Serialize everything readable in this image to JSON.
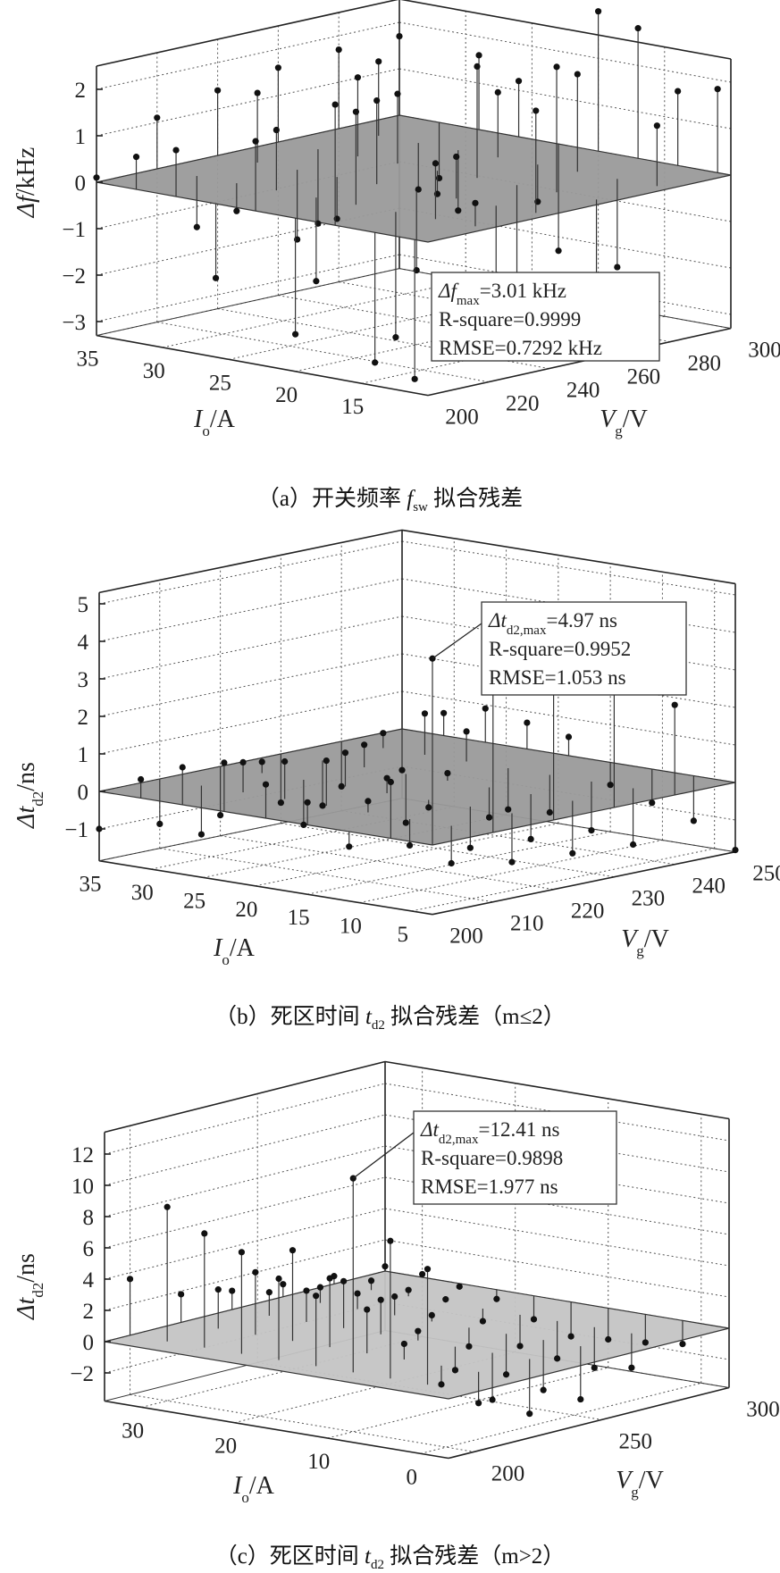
{
  "chart_data": [
    {
      "type": "scatter",
      "subtype": "3d-stem-residual",
      "caption": {
        "prefix": "（a）开关频率 ",
        "sym": "f",
        "sub": "sw",
        "suffix": " 拟合残差"
      },
      "xlabel": {
        "main": "I",
        "sub": "o",
        "suffix": "/A"
      },
      "ylabel": {
        "main": "V",
        "sub": "g",
        "suffix": "/V"
      },
      "zlabel": {
        "main": "Δf",
        "sub": "",
        "suffix": "/kHz"
      },
      "xlim": [
        10,
        35
      ],
      "ylim": [
        200,
        300
      ],
      "zlim": [
        -3.3,
        2.5
      ],
      "xticks": [
        15,
        20,
        25,
        30,
        35
      ],
      "yticks": [
        200,
        220,
        240,
        260,
        280,
        300
      ],
      "zticks": [
        -3,
        -2,
        -1,
        0,
        1,
        2
      ],
      "grid": true,
      "plane_color": "#9a9a9a",
      "io": [
        35,
        32,
        29,
        26,
        23,
        20,
        17,
        14,
        11
      ],
      "vg": [
        200,
        220,
        240,
        260,
        280,
        300
      ],
      "residual": [
        [
          0.1,
          1.1,
          1.4,
          1.6,
          1.7,
          1.7
        ],
        [
          0.7,
          -1.1,
          1.5,
          -1.6,
          1.6,
          -1.2
        ],
        [
          1.0,
          -0.6,
          -1.5,
          1.7,
          -1.0,
          1.6
        ],
        [
          -1.6,
          1.3,
          -0.9,
          1.5,
          -1.3,
          1.2
        ],
        [
          1.5,
          -1.8,
          1.8,
          -0.5,
          1.4,
          -2.3
        ],
        [
          -2.5,
          2.0,
          -1.7,
          2.4,
          -0.8,
          3.01
        ],
        [
          2.6,
          -2.7,
          0.9,
          -2.2,
          2.1,
          2.8
        ],
        [
          -2.8,
          1.2,
          -2.4,
          2.7,
          -1.9,
          1.6
        ],
        [
          -3.0,
          0.5,
          2.2,
          -1.7,
          1.3,
          1.8
        ]
      ],
      "annotation": {
        "sym": "Δf",
        "sub": "max",
        "value": "=3.01 kHz",
        "line2": "R-square=0.9999",
        "line3": "RMSE=0.7292 kHz"
      }
    },
    {
      "type": "scatter",
      "subtype": "3d-stem-residual",
      "caption": {
        "prefix": "（b）死区时间 ",
        "sym": "t",
        "sub": "d2",
        "suffix": " 拟合残差（m≤2）"
      },
      "xlabel": {
        "main": "I",
        "sub": "o",
        "suffix": "/A"
      },
      "ylabel": {
        "main": "V",
        "sub": "g",
        "suffix": "/V"
      },
      "zlabel": {
        "main": "Δt",
        "sub": "d2",
        "suffix": "/ns"
      },
      "xlim": [
        3,
        35
      ],
      "ylim": [
        200,
        250
      ],
      "zlim": [
        -1.85,
        5.3
      ],
      "xticks": [
        5,
        10,
        15,
        20,
        25,
        30,
        35
      ],
      "yticks": [
        200,
        210,
        220,
        230,
        240,
        250
      ],
      "zticks": [
        -1,
        0,
        1,
        2,
        3,
        4,
        5
      ],
      "grid": true,
      "plane_color": "#9a9a9a",
      "io": [
        35,
        31,
        27,
        23,
        19,
        15,
        11,
        7,
        3
      ],
      "vg": [
        200,
        210,
        220,
        230,
        240,
        250
      ],
      "residual": [
        [
          -1.0,
          -1.2,
          -1.3,
          -1.3,
          -1.2,
          -1.1
        ],
        [
          0.5,
          -1.3,
          0.3,
          -1.2,
          0.4,
          0.6
        ],
        [
          1.0,
          0.8,
          -1.2,
          0.6,
          1.1,
          0.9
        ],
        [
          1.3,
          1.0,
          0.9,
          -1.3,
          0.8,
          0.7
        ],
        [
          0.9,
          1.2,
          0.4,
          0.2,
          -1.1,
          0.5
        ],
        [
          0.6,
          0.3,
          -0.2,
          -0.8,
          -1.0,
          -0.6
        ],
        [
          -0.4,
          -0.7,
          -1.1,
          -1.2,
          -1.3,
          -0.9
        ],
        [
          1.5,
          -1.0,
          -1.3,
          -1.4,
          -1.5,
          -1.2
        ],
        [
          4.97,
          4.8,
          4.3,
          3.9,
          2.4,
          -1.8
        ]
      ],
      "max_point": [
        3,
        200,
        4.97
      ],
      "annotation": {
        "sym": "Δt",
        "sub": "d2,max",
        "value": "=4.97 ns",
        "line2": "R-square=0.9952",
        "line3": "RMSE=1.053 ns"
      }
    },
    {
      "type": "scatter",
      "subtype": "3d-stem-residual",
      "caption": {
        "prefix": "（c）死区时间 ",
        "sym": "t",
        "sub": "d2",
        "suffix": " 拟合残差（m>2）"
      },
      "xlabel": {
        "main": "I",
        "sub": "o",
        "suffix": "/A"
      },
      "ylabel": {
        "main": "V",
        "sub": "g",
        "suffix": "/V"
      },
      "zlabel": {
        "main": "Δt",
        "sub": "d2",
        "suffix": "/ns"
      },
      "xlim": [
        -3,
        34
      ],
      "ylim": [
        190,
        300
      ],
      "zlim": [
        -3.8,
        13.4
      ],
      "xticks": [
        0,
        10,
        20,
        30
      ],
      "yticks": [
        200,
        250,
        300
      ],
      "zticks": [
        -2,
        0,
        2,
        4,
        6,
        8,
        10,
        12
      ],
      "grid": true,
      "plane_color": "#c4c4c4",
      "io": [
        34,
        30,
        26,
        22,
        18,
        14,
        10,
        6,
        2
      ],
      "vg": [
        200,
        220,
        240,
        260,
        280,
        300
      ],
      "residual": [
        [
          3.6,
          1.8,
          1.2,
          0.8,
          0.5,
          0.3
        ],
        [
          8.6,
          2.5,
          1.5,
          1.0,
          0.6,
          0.2
        ],
        [
          7.3,
          4.0,
          2.0,
          1.0,
          0.4,
          -0.2
        ],
        [
          6.5,
          5.8,
          3.0,
          1.2,
          0.2,
          -0.6
        ],
        [
          5.2,
          4.4,
          2.2,
          0.4,
          -0.8,
          -1.5
        ],
        [
          4.5,
          2.8,
          0.6,
          -1.2,
          -2.0,
          -2.2
        ],
        [
          12.41,
          1.0,
          -1.5,
          -2.6,
          -2.4,
          -2.0
        ],
        [
          8.8,
          -1.2,
          -3.0,
          -3.2,
          -2.6,
          -1.8
        ],
        [
          7.4,
          -2.0,
          -3.5,
          -3.4,
          -2.2,
          -1.5
        ]
      ],
      "max_point": [
        10,
        200,
        12.41
      ],
      "annotation": {
        "sym": "Δt",
        "sub": "d2,max",
        "value": "=12.41 ns",
        "line2": "R-square=0.9898",
        "line3": "RMSE=1.977 ns"
      }
    }
  ]
}
